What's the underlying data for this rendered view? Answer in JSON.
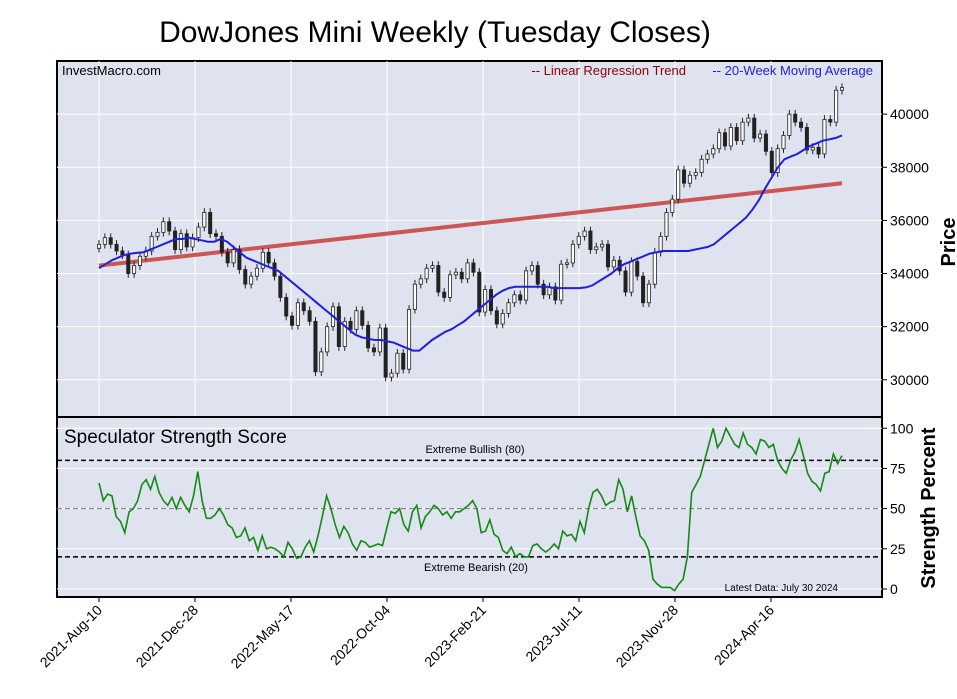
{
  "chart_data": {
    "type": "candlestick",
    "title": "DowJones Mini Weekly (Tuesday Closes)",
    "source_label": "InvestMacro.com",
    "legend": {
      "regression": "-- Linear Regression Trend",
      "moving_average": "-- 20-Week Moving Average",
      "placement": "top-right"
    },
    "colors": {
      "panel_bg": "#dfe3ef",
      "regression": "#cc5555",
      "moving_average": "#1f1fdd",
      "score_line": "#138a13",
      "candle_up": "#ffffff",
      "candle_down": "#222222",
      "legend_regression_text": "#8b0000",
      "legend_ma_text": "#1f1fdd"
    },
    "x_ticks": [
      "2021-Aug-10",
      "2021-Dec-28",
      "2022-May-17",
      "2022-Oct-04",
      "2023-Feb-21",
      "2023-Jul-11",
      "2023-Nov-28",
      "2024-Apr-16"
    ],
    "price_panel": {
      "ylabel": "Price",
      "yticks": [
        30000,
        32000,
        34000,
        36000,
        38000,
        40000
      ],
      "ylim": [
        28600,
        42000
      ],
      "regression_start": 34300,
      "regression_end": 37400,
      "closes": [
        35100,
        35350,
        35100,
        34850,
        34700,
        34000,
        34300,
        34650,
        34850,
        35400,
        35550,
        35950,
        35600,
        34900,
        35500,
        35000,
        35350,
        35750,
        36300,
        35500,
        35400,
        34800,
        34400,
        34900,
        34150,
        33600,
        33900,
        34200,
        34800,
        34400,
        33900,
        33100,
        32400,
        32050,
        32900,
        32600,
        32200,
        30300,
        31050,
        32000,
        32750,
        31250,
        32200,
        31900,
        32600,
        32050,
        31200,
        31050,
        31950,
        30100,
        30250,
        31000,
        30400,
        32650,
        33600,
        33800,
        34200,
        34300,
        33300,
        33100,
        33950,
        34050,
        33800,
        34400,
        34050,
        32550,
        33400,
        32600,
        32100,
        32500,
        32900,
        33200,
        33000,
        34100,
        34300,
        33600,
        33200,
        33500,
        33000,
        34350,
        34400,
        35100,
        35400,
        35600,
        34900,
        35000,
        35100,
        34250,
        34500,
        34100,
        33300,
        34450,
        33900,
        32900,
        33600,
        34800,
        35400,
        36300,
        36800,
        37900,
        37400,
        37700,
        37800,
        38300,
        38500,
        38700,
        39300,
        38800,
        39500,
        39000,
        39700,
        39850,
        39100,
        39250,
        38600,
        37800,
        38700,
        39200,
        40000,
        39700,
        39500,
        38650,
        38750,
        38500,
        39800,
        39700,
        40900,
        41000
      ],
      "ma20": [
        34200,
        34350,
        34500,
        34600,
        34700,
        34750,
        34780,
        34800,
        34900,
        35000,
        35100,
        35200,
        35300,
        35300,
        35350,
        35300,
        35250,
        35200,
        35200,
        35300,
        35200,
        35000,
        34800,
        34600,
        34500,
        34400,
        34300,
        34200,
        34100,
        33900,
        33700,
        33500,
        33300,
        33100,
        32900,
        32700,
        32500,
        32300,
        32100,
        31900,
        31700,
        31600,
        31550,
        31500,
        31500,
        31450,
        31400,
        31300,
        31200,
        31100,
        31100,
        31300,
        31500,
        31650,
        31800,
        31900,
        32050,
        32200,
        32400,
        32600,
        32800,
        33000,
        33200,
        33350,
        33450,
        33500,
        33500,
        33500,
        33500,
        33500,
        33500,
        33450,
        33450,
        33450,
        33450,
        33450,
        33480,
        33550,
        33700,
        33850,
        34000,
        34200,
        34350,
        34450,
        34550,
        34650,
        34750,
        34800,
        34850,
        34850,
        34850,
        34850,
        34850,
        34900,
        34950,
        35000,
        35100,
        35300,
        35500,
        35700,
        35900,
        36100,
        36400,
        36750,
        37200,
        37600,
        38000,
        38300,
        38400,
        38500,
        38650,
        38800,
        38900,
        39000,
        39050,
        39100,
        39200
      ]
    },
    "score_panel": {
      "title": "Speculator Strength Score",
      "ylabel": "Strength Percent",
      "yticks": [
        0,
        25,
        50,
        75,
        100
      ],
      "ylim": [
        -5,
        107
      ],
      "extreme_bullish": 80,
      "extreme_bearish": 20,
      "extreme_bullish_label": "Extreme Bullish (80)",
      "extreme_bearish_label": "Extreme Bearish (20)",
      "latest_label": "Latest Data: July 30 2024",
      "values": [
        66,
        55,
        59,
        58,
        45,
        42,
        35,
        48,
        50,
        55,
        65,
        68,
        62,
        70,
        60,
        55,
        52,
        57,
        50,
        57,
        52,
        48,
        58,
        73,
        55,
        44,
        44,
        46,
        50,
        46,
        40,
        38,
        32,
        33,
        38,
        30,
        32,
        24,
        33,
        25,
        26,
        25,
        23,
        20,
        29,
        25,
        19,
        20,
        26,
        30,
        23,
        33,
        45,
        58,
        50,
        40,
        32,
        39,
        35,
        28,
        24,
        30,
        29,
        26,
        27,
        28,
        27,
        38,
        48,
        47,
        50,
        40,
        36,
        48,
        52,
        38,
        45,
        48,
        52,
        50,
        46,
        48,
        44,
        48,
        48,
        50,
        52,
        55,
        50,
        35,
        36,
        43,
        34,
        32,
        24,
        22,
        26,
        20,
        22,
        20,
        20,
        27,
        28,
        25,
        23,
        25,
        28,
        25,
        36,
        33,
        34,
        30,
        42,
        35,
        50,
        60,
        62,
        58,
        52,
        54,
        55,
        68,
        62,
        48,
        58,
        45,
        33,
        30,
        24,
        6,
        3,
        1,
        1,
        1,
        -1,
        3,
        6,
        20,
        60,
        65,
        70,
        80,
        90,
        100,
        88,
        92,
        100,
        95,
        90,
        88,
        97,
        90,
        88,
        84,
        93,
        92,
        88,
        90,
        80,
        75,
        72,
        80,
        85,
        93,
        83,
        72,
        67,
        65,
        61,
        72,
        73,
        84,
        78,
        83
      ]
    }
  }
}
